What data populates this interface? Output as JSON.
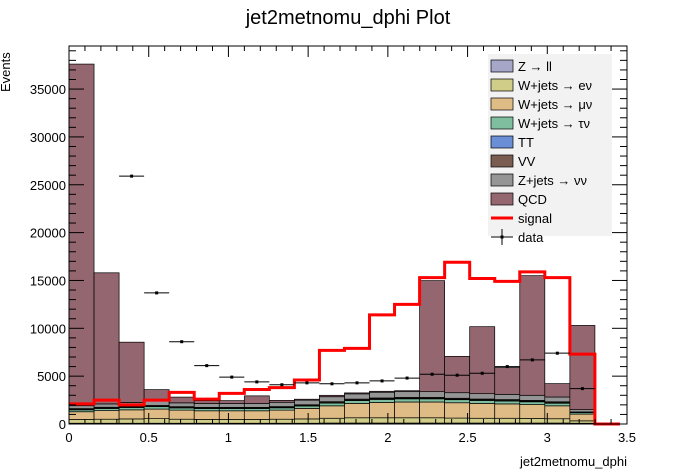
{
  "chart_data": {
    "type": "bar",
    "title": "jet2metnomu_dphi Plot",
    "xlabel": "jet2metnomu_dphi",
    "ylabel": "Events",
    "xlim": [
      0,
      3.5
    ],
    "ylim": [
      0,
      39500
    ],
    "x_ticks": [
      "0",
      "0.5",
      "1",
      "1.5",
      "2",
      "2.5",
      "3",
      "3.5"
    ],
    "y_ticks": [
      "0",
      "5000",
      "10000",
      "15000",
      "20000",
      "25000",
      "30000",
      "35000"
    ],
    "bin_edges": [
      0,
      0.1571,
      0.3142,
      0.4712,
      0.6283,
      0.7854,
      0.9425,
      1.0996,
      1.2566,
      1.4137,
      1.5708,
      1.7279,
      1.885,
      2.042,
      2.1991,
      2.3562,
      2.5133,
      2.6704,
      2.8274,
      2.9845,
      3.1416,
      3.2987,
      3.4558
    ],
    "stack_order": [
      "Z → ll",
      "W+jets → eν",
      "W+jets → μν",
      "W+jets → τν",
      "TT",
      "VV",
      "Z+jets → νν",
      "QCD"
    ],
    "series": [
      {
        "name": "Z → ll",
        "color": "#a6a6c9",
        "values": [
          80,
          80,
          80,
          80,
          80,
          80,
          80,
          80,
          80,
          80,
          100,
          100,
          100,
          100,
          100,
          100,
          100,
          100,
          100,
          100,
          80,
          0
        ]
      },
      {
        "name": "W+jets → eν",
        "color": "#cfcd88",
        "values": [
          400,
          420,
          450,
          480,
          420,
          400,
          400,
          400,
          420,
          450,
          500,
          550,
          550,
          550,
          550,
          520,
          500,
          500,
          480,
          450,
          250,
          0
        ]
      },
      {
        "name": "W+jets → μν",
        "color": "#dfbc85",
        "values": [
          800,
          900,
          950,
          1000,
          950,
          900,
          900,
          900,
          950,
          1100,
          1300,
          1500,
          1600,
          1650,
          1650,
          1600,
          1550,
          1500,
          1450,
          1350,
          700,
          0
        ]
      },
      {
        "name": "W+jets → τν",
        "color": "#7fbfa0",
        "values": [
          200,
          220,
          240,
          250,
          230,
          230,
          230,
          230,
          240,
          250,
          280,
          300,
          320,
          330,
          330,
          320,
          310,
          300,
          290,
          270,
          150,
          0
        ]
      },
      {
        "name": "TT",
        "color": "#6b8fd6",
        "values": [
          50,
          50,
          50,
          50,
          50,
          50,
          50,
          50,
          50,
          50,
          60,
          60,
          60,
          60,
          60,
          60,
          60,
          60,
          60,
          60,
          30,
          0
        ]
      },
      {
        "name": "VV",
        "color": "#7a5c50",
        "values": [
          80,
          80,
          80,
          80,
          80,
          80,
          80,
          80,
          80,
          80,
          90,
          90,
          90,
          90,
          90,
          90,
          90,
          90,
          90,
          90,
          50,
          0
        ]
      },
      {
        "name": "Z+jets → νν",
        "color": "#959595",
        "values": [
          300,
          350,
          400,
          450,
          400,
          400,
          400,
          400,
          450,
          480,
          520,
          550,
          600,
          600,
          600,
          580,
          560,
          550,
          530,
          500,
          240,
          0
        ]
      },
      {
        "name": "QCD",
        "color": "#946670",
        "values": [
          35700,
          13700,
          6300,
          1200,
          600,
          300,
          300,
          800,
          200,
          100,
          150,
          100,
          100,
          100,
          11600,
          3800,
          7000,
          2800,
          12500,
          1400,
          8800,
          0
        ]
      }
    ],
    "signal": {
      "name": "signal",
      "color": "#ff0000",
      "values": [
        2100,
        2500,
        2000,
        2500,
        3300,
        2600,
        3200,
        3600,
        3800,
        4600,
        7700,
        7900,
        11400,
        12500,
        15300,
        16900,
        15200,
        14900,
        15900,
        15300,
        7300,
        0
      ]
    },
    "data": {
      "name": "data",
      "values": [
        null,
        null,
        25900,
        13700,
        8600,
        6100,
        4900,
        4400,
        4100,
        4300,
        4200,
        4300,
        4500,
        4800,
        5200,
        5100,
        5300,
        6000,
        6700,
        7400,
        3700,
        null
      ]
    },
    "legend": {
      "position": "top-right",
      "entries": [
        "Z → ll",
        "W+jets → eν",
        "W+jets → μν",
        "W+jets → τν",
        "TT",
        "VV",
        "Z+jets → νν",
        "QCD",
        "signal",
        "data"
      ]
    }
  }
}
